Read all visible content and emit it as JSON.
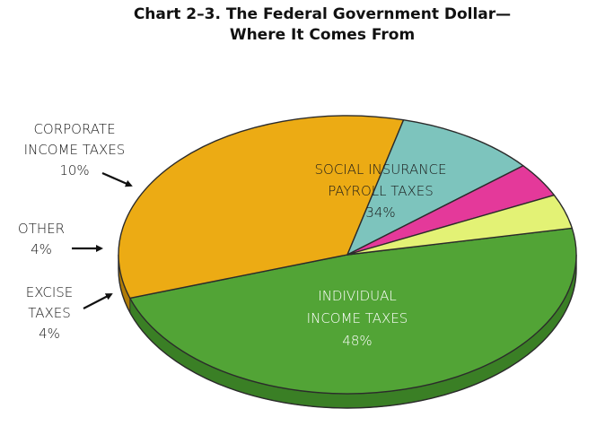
{
  "header": {
    "line1": "Chart 2–3.   The Federal Government Dollar—",
    "line2": "Where It Comes From"
  },
  "chart_data": {
    "type": "pie",
    "title": "Chart 2–3. The Federal Government Dollar—Where It Comes From",
    "slices": [
      {
        "label_lines": [
          "INDIVIDUAL",
          "INCOME TAXES"
        ],
        "value": 48,
        "value_text": "48%",
        "color": "#52a436",
        "side_color": "#3a7f25"
      },
      {
        "label_lines": [
          "SOCIAL INSURANCE",
          "PAYROLL TAXES"
        ],
        "value": 34,
        "value_text": "34%",
        "color": "#ecab14",
        "side_color": "#b17c08"
      },
      {
        "label_lines": [
          "CORPORATE",
          "INCOME TAXES"
        ],
        "value": 10,
        "value_text": "10%",
        "color": "#7dc4bd",
        "side_color": "#56948e"
      },
      {
        "label_lines": [
          "OTHER"
        ],
        "value": 4,
        "value_text": "4%",
        "color": "#e4399a",
        "side_color": "#a82470"
      },
      {
        "label_lines": [
          "EXCISE",
          "TAXES"
        ],
        "value": 4,
        "value_text": "4%",
        "color": "#e3f275",
        "side_color": "#c9a21b"
      }
    ]
  }
}
